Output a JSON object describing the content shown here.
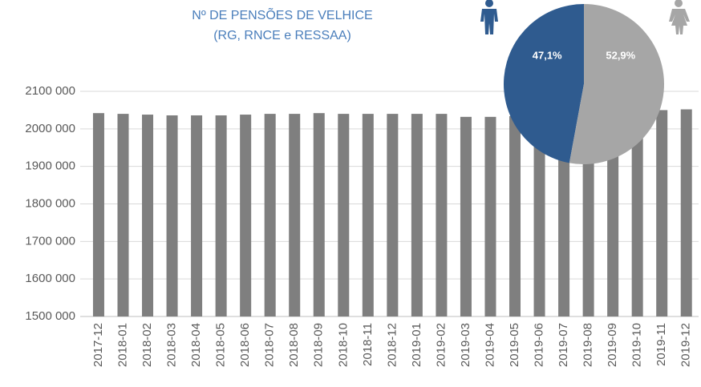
{
  "chart_data": [
    {
      "type": "bar",
      "title": "Nº DE PENSÕES DE VELHICE",
      "subtitle": "(RG, RNCE e RESSAA)",
      "categories": [
        "2017-12",
        "2018-01",
        "2018-02",
        "2018-03",
        "2018-04",
        "2018-05",
        "2018-06",
        "2018-07",
        "2018-08",
        "2018-09",
        "2018-10",
        "2018-11",
        "2018-12",
        "2019-01",
        "2019-02",
        "2019-03",
        "2019-04",
        "2019-05",
        "2019-06",
        "2019-07",
        "2019-08",
        "2019-09",
        "2019-10",
        "2019-11",
        "2019-12"
      ],
      "values": [
        2042000,
        2040000,
        2038000,
        2036000,
        2036000,
        2036000,
        2038000,
        2040000,
        2040000,
        2042000,
        2040000,
        2040000,
        2040000,
        2040000,
        2040000,
        2032000,
        2032000,
        2034000,
        2042000,
        2042000,
        2042000,
        2044000,
        2048000,
        2050000,
        2052000
      ],
      "color": "#7f7f7f",
      "ylim": [
        1500000,
        2100000
      ],
      "yticks": [
        {
          "value": 1500000,
          "label": "1500 000"
        },
        {
          "value": 1600000,
          "label": "1600 000"
        },
        {
          "value": 1700000,
          "label": "1700 000"
        },
        {
          "value": 1800000,
          "label": "1800 000"
        },
        {
          "value": 1900000,
          "label": "1900 000"
        },
        {
          "value": 2000000,
          "label": "2000 000"
        },
        {
          "value": 2100000,
          "label": "2100 000"
        }
      ],
      "grid": true
    },
    {
      "type": "pie",
      "values": [
        47.1,
        52.9
      ],
      "value_labels": [
        "47,1%",
        "52,9%"
      ],
      "colors": [
        "#2f5b8f",
        "#a6a6a6"
      ]
    }
  ]
}
